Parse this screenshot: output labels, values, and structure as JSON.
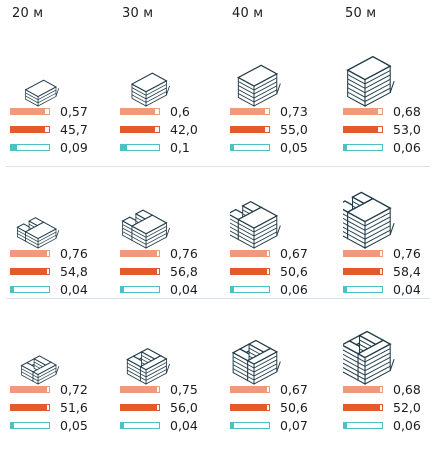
{
  "colors": {
    "far": "#ef9a7b",
    "density": "#e55a2c",
    "green": "#4ec0c0",
    "line": "#1f3a48"
  },
  "columns": [
    {
      "label": "20 м",
      "storeys": 3
    },
    {
      "label": "30 м",
      "storeys": 4
    },
    {
      "label": "40 м",
      "storeys": 5
    },
    {
      "label": "50 м",
      "storeys": 6
    }
  ],
  "rows": [
    {
      "shape": "bar",
      "cells": [
        {
          "far": "0,57",
          "density": "45,7",
          "green": "0,09",
          "far_level": 0.9,
          "density_level": 0.9,
          "green_level": 0.15
        },
        {
          "far": "0,6",
          "density": "42,0",
          "green": "0,1",
          "far_level": 0.9,
          "density_level": 0.9,
          "green_level": 0.15
        },
        {
          "far": "0,73",
          "density": "55,0",
          "green": "0,05",
          "far_level": 0.9,
          "density_level": 0.9,
          "green_level": 0.08
        },
        {
          "far": "0,68",
          "density": "53,0",
          "green": "0,06",
          "far_level": 0.9,
          "density_level": 0.9,
          "green_level": 0.08
        }
      ]
    },
    {
      "shape": "u",
      "cells": [
        {
          "far": "0,76",
          "density": "54,8",
          "green": "0,04",
          "far_level": 0.95,
          "density_level": 0.95,
          "green_level": 0.08
        },
        {
          "far": "0,76",
          "density": "56,8",
          "green": "0,04",
          "far_level": 0.95,
          "density_level": 0.95,
          "green_level": 0.08
        },
        {
          "far": "0,67",
          "density": "50,6",
          "green": "0,06",
          "far_level": 0.95,
          "density_level": 0.95,
          "green_level": 0.08
        },
        {
          "far": "0,76",
          "density": "58,4",
          "green": "0,04",
          "far_level": 0.95,
          "density_level": 0.95,
          "green_level": 0.08
        }
      ]
    },
    {
      "shape": "ring",
      "cells": [
        {
          "far": "0,72",
          "density": "51,6",
          "green": "0,05",
          "far_level": 0.95,
          "density_level": 0.95,
          "green_level": 0.08
        },
        {
          "far": "0,75",
          "density": "56,0",
          "green": "0,04",
          "far_level": 0.95,
          "density_level": 0.95,
          "green_level": 0.08
        },
        {
          "far": "0,67",
          "density": "50,6",
          "green": "0,07",
          "far_level": 0.95,
          "density_level": 0.95,
          "green_level": 0.08
        },
        {
          "far": "0,68",
          "density": "52,0",
          "green": "0,06",
          "far_level": 0.95,
          "density_level": 0.95,
          "green_level": 0.08
        }
      ]
    }
  ]
}
